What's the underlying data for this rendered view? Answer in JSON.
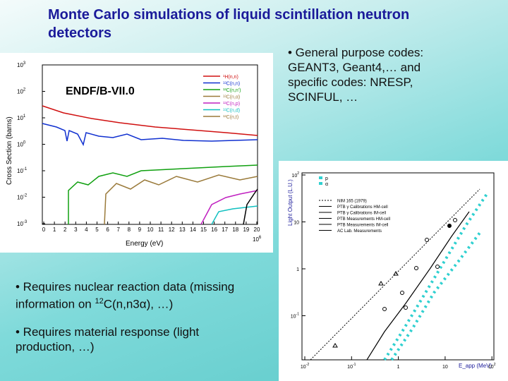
{
  "title": "Monte Carlo simulations of liquid scintillation neutron detectors",
  "bullets_right": [
    {
      "text": "• General purpose codes: GEANT3, Geant4,… and specific codes: NRESP, SCINFUL, …"
    }
  ],
  "bullets_left": [
    {
      "parts": [
        "• Requires nuclear reaction data (missing information on ",
        "12",
        "C(n,n3",
        "α",
        "), …)"
      ]
    },
    {
      "parts": [
        "• Requires material response (light production, …)"
      ]
    }
  ],
  "cross_section_plot": {
    "label": "ENDF/B-VII.0",
    "y_axis_label": "Cross Section (barns)",
    "x_axis_label": "Energy (eV)",
    "x_multiplier": {
      "base": "10",
      "exp": "6"
    },
    "yticks": [
      {
        "base": "10",
        "exp": "3"
      },
      {
        "base": "10",
        "exp": "2"
      },
      {
        "base": "10",
        "exp": "1"
      },
      {
        "base": "10",
        "exp": "0"
      },
      {
        "base": "10",
        "exp": "-1"
      },
      {
        "base": "10",
        "exp": "-2"
      },
      {
        "base": "10",
        "exp": "-3"
      }
    ],
    "xticks": [
      "0",
      "1",
      "2",
      "3",
      "4",
      "5",
      "6",
      "7",
      "8",
      "9",
      "10",
      "11",
      "12",
      "13",
      "14",
      "15",
      "16",
      "17",
      "18",
      "19",
      "20"
    ],
    "legend": [
      "¹H(n,n)",
      "¹²C(n,n)",
      "¹²C(n,n')",
      "¹²C(n,α)",
      "¹²C(n,p)",
      "¹²C(n,d)",
      "¹²C(n,t)"
    ]
  },
  "light_output_plot": {
    "y_axis_label": "Light Output (L.U.)",
    "x_axis_label": "E_app (MeV)",
    "yticks": [
      {
        "base": "10",
        "exp": "2"
      },
      {
        "base": "10",
        "exp": ""
      },
      {
        "base": "1",
        "exp": ""
      },
      {
        "base": "10",
        "exp": "-1"
      }
    ],
    "xticks": [
      {
        "base": "10",
        "exp": "-2"
      },
      {
        "base": "10",
        "exp": "-1"
      },
      {
        "base": "1",
        "exp": ""
      },
      {
        "base": "10",
        "exp": ""
      },
      {
        "base": "10",
        "exp": "2"
      }
    ],
    "legend_top": [
      "p",
      "α"
    ],
    "legend": [
      "NIM 165 (1979)",
      "PTB γ Calibrations HM-cell",
      "PTB γ Calibrations IM-cell",
      "PTB Measurements HM-cell",
      "PTB Measurements IM-cell",
      "AC Lab. Measurements"
    ]
  }
}
